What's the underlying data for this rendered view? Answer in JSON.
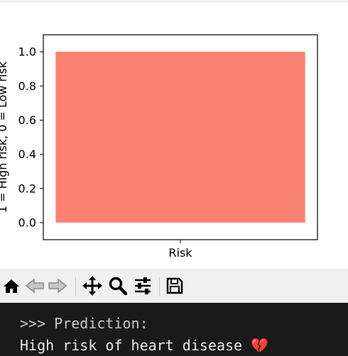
{
  "chart_data": {
    "type": "bar",
    "categories": [
      "Risk"
    ],
    "values": [
      1
    ],
    "ylabel": "1 = High risk, 0 = Low risk",
    "xlabel": "",
    "ylim": [
      -0.1,
      1.1
    ],
    "yticks": [
      "0.0",
      "0.2",
      "0.4",
      "0.6",
      "0.8",
      "1.0"
    ],
    "bar_color": "#fa8072",
    "grid": false
  },
  "toolbar": {
    "buttons": [
      "home-icon",
      "back-icon",
      "forward-icon",
      "pan-icon",
      "zoom-icon",
      "configure-subplots-icon",
      "save-icon"
    ]
  },
  "terminal": {
    "line1": ">>> Prediction:",
    "line2": "High risk of heart disease",
    "emoji": "💔",
    "background": "#1a1a1a"
  }
}
